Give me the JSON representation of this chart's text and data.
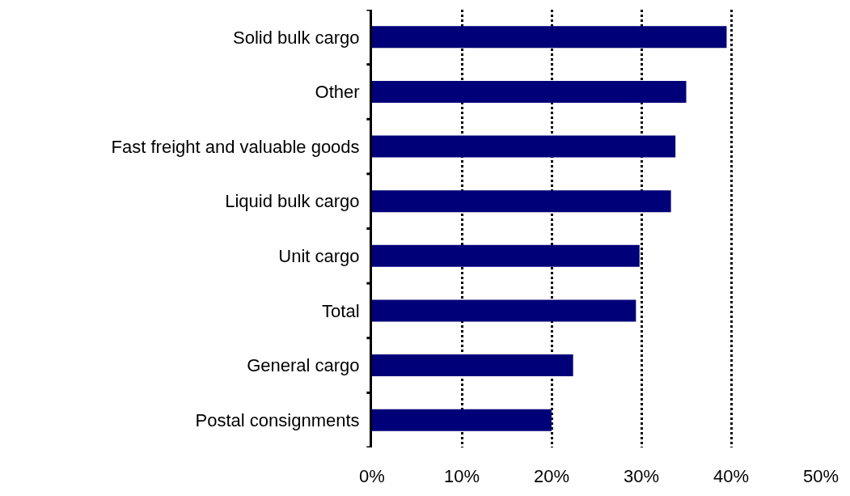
{
  "chart_data": {
    "type": "bar",
    "orientation": "horizontal",
    "categories": [
      "Solid bulk cargo",
      "Other",
      "Fast freight and valuable goods",
      "Liquid bulk cargo",
      "Unit cargo",
      "Total",
      "General cargo",
      "Postal consignments"
    ],
    "values": [
      39.5,
      35.0,
      33.8,
      33.3,
      29.8,
      29.4,
      22.4,
      20.0
    ],
    "color": "#000078",
    "xlim": [
      0,
      50
    ],
    "xticks": [
      {
        "value": 0,
        "label": "0%"
      },
      {
        "value": 10,
        "label": "10%"
      },
      {
        "value": 20,
        "label": "20%"
      },
      {
        "value": 30,
        "label": "30%"
      },
      {
        "value": 40,
        "label": "40%"
      },
      {
        "value": 50,
        "label": "50%"
      }
    ],
    "grid": "x",
    "legend": false
  }
}
